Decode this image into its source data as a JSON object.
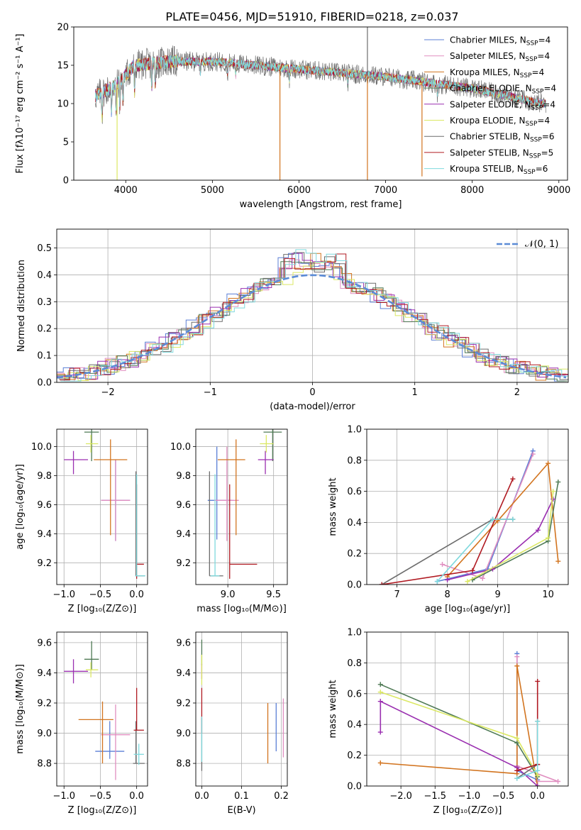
{
  "figure_title": "PLATE=0456, MJD=51910, FIBERID=0218, z=0.037",
  "colors": {
    "chabrier_miles": "#5b7fd6",
    "salpeter_miles": "#e08ec0",
    "kroupa_miles": "#d2741f",
    "chabrier_elodie": "#4f7a55",
    "salpeter_elodie": "#9a2fb0",
    "kroupa_elodie": "#dbe863",
    "chabrier_stelib": "#6d6d6d",
    "salpeter_stelib": "#b01a22",
    "kroupa_stelib": "#7fd9dd",
    "normal": "#5b8bd6"
  },
  "chart_data": [
    {
      "id": "spectrum",
      "type": "line",
      "xlabel": "wavelength [Angstrom, rest frame]",
      "ylabel": "Flux [fλ10⁻¹⁷ erg cm⁻² s⁻¹ A⁻¹]",
      "xlim": [
        3400,
        9100
      ],
      "ylim": [
        0,
        20
      ],
      "xticks": [
        "4000",
        "5000",
        "6000",
        "7000",
        "8000",
        "9000"
      ],
      "yticks": [
        "0",
        "5",
        "10",
        "15",
        "20"
      ],
      "wavelength_range": [
        3650,
        8850
      ],
      "continuum_anchor": {
        "x": [
          3650,
          3900,
          4100,
          4500,
          5000,
          6000,
          7000,
          8000,
          8800
        ],
        "y": [
          11.0,
          12.5,
          15.0,
          15.5,
          15.5,
          14.5,
          13.5,
          12.0,
          10.0
        ]
      },
      "legend": [
        {
          "main": "Chabrier MILES, N",
          "sub": "SSP",
          "tail": "=4",
          "color_key": "chabrier_miles"
        },
        {
          "main": "Salpeter MILES, N",
          "sub": "SSP",
          "tail": "=4",
          "color_key": "salpeter_miles"
        },
        {
          "main": "Kroupa MILES, N",
          "sub": "SSP",
          "tail": "=4",
          "color_key": "kroupa_miles"
        },
        {
          "main": "Chabrier ELODIE, N",
          "sub": "SSP",
          "tail": "=4",
          "color_key": "chabrier_elodie"
        },
        {
          "main": "Salpeter ELODIE, N",
          "sub": "SSP",
          "tail": "=4",
          "color_key": "salpeter_elodie"
        },
        {
          "main": "Kroupa ELODIE, N",
          "sub": "SSP",
          "tail": "=4",
          "color_key": "kroupa_elodie"
        },
        {
          "main": "Chabrier STELIB, N",
          "sub": "SSP",
          "tail": "=6",
          "color_key": "chabrier_stelib"
        },
        {
          "main": "Salpeter STELIB, N",
          "sub": "SSP",
          "tail": "=5",
          "color_key": "salpeter_stelib"
        },
        {
          "main": "Kroupa STELIB, N",
          "sub": "SSP",
          "tail": "=6",
          "color_key": "kroupa_stelib"
        }
      ],
      "dropouts": [
        {
          "x": 3900,
          "y_min": 0,
          "color_key": "kroupa_elodie"
        },
        {
          "x": 5780,
          "y_min": 0,
          "color_key": "kroupa_miles"
        },
        {
          "x": 6790,
          "y_min": 0,
          "color_key": "kroupa_miles"
        },
        {
          "x": 7420,
          "y_min": 0.5,
          "color_key": "kroupa_miles"
        }
      ],
      "spike": {
        "x": 6790,
        "y_max": 20,
        "color_key": "chabrier_stelib"
      }
    },
    {
      "id": "residuals",
      "type": "step",
      "xlabel": "(data-model)/error",
      "ylabel": "Normed distribution",
      "xlim": [
        -2.5,
        2.5
      ],
      "ylim": [
        0,
        0.57
      ],
      "xticks": [
        "−2",
        "−1",
        "0",
        "1",
        "2"
      ],
      "yticks": [
        "0.0",
        "0.1",
        "0.2",
        "0.3",
        "0.4",
        "0.5"
      ],
      "bin_width": 0.1,
      "legend": {
        "label": "𝒩(0, 1)",
        "color_key": "normal"
      },
      "peak_values": [
        0.54,
        0.47,
        0.45,
        0.44,
        0.42
      ]
    },
    {
      "id": "age_vs_Z",
      "type": "errorbar",
      "xlabel": "Z [log₁₀(Z/Z⊙)]",
      "ylabel": "age  [log₁₀(age/yr)]",
      "xlim": [
        -1.1,
        0.15
      ],
      "ylim": [
        9.05,
        10.12
      ],
      "xticks": [
        "−1.0",
        "−0.5",
        "0.0"
      ],
      "yticks": [
        "9.2",
        "9.4",
        "9.6",
        "9.8",
        "10.0"
      ],
      "points": [
        {
          "x": -0.29,
          "y": 9.63,
          "xerr": [
            0.2,
            0.2
          ],
          "yerr": [
            0.28,
            0.28
          ],
          "color_key": "chabrier_miles"
        },
        {
          "x": -0.29,
          "y": 9.63,
          "xerr": [
            0.2,
            0.2
          ],
          "yerr": [
            0.28,
            0.28
          ],
          "color_key": "salpeter_miles"
        },
        {
          "x": -0.36,
          "y": 9.91,
          "xerr": [
            0.23,
            0.23
          ],
          "yerr": [
            0.52,
            0.14
          ],
          "color_key": "kroupa_miles"
        },
        {
          "x": -0.62,
          "y": 10.1,
          "xerr": [
            0.1,
            0.1
          ],
          "yerr": [
            0.2,
            0.02
          ],
          "color_key": "chabrier_elodie"
        },
        {
          "x": -0.87,
          "y": 9.91,
          "xerr": [
            0.13,
            0.2
          ],
          "yerr": [
            0.1,
            0.06
          ],
          "color_key": "salpeter_elodie"
        },
        {
          "x": -0.63,
          "y": 10.02,
          "xerr": [
            0.07,
            0.1
          ],
          "yerr": [
            0.06,
            0.06
          ],
          "color_key": "kroupa_elodie"
        },
        {
          "x": -0.01,
          "y": 9.11,
          "xerr": [
            0.01,
            0.12
          ],
          "yerr": [
            0.0,
            0.72
          ],
          "color_key": "chabrier_stelib"
        },
        {
          "x": 0.0,
          "y": 9.19,
          "xerr": [
            0.0,
            0.1
          ],
          "yerr": [
            0.1,
            0.55
          ],
          "color_key": "salpeter_stelib"
        },
        {
          "x": 0.0,
          "y": 9.11,
          "xerr": [
            0.02,
            0.12
          ],
          "yerr": [
            0.0,
            0.7
          ],
          "color_key": "kroupa_stelib"
        }
      ]
    },
    {
      "id": "age_vs_mass",
      "type": "errorbar",
      "xlabel": "mass [log₁₀(M/M⊙)]",
      "ylabel": "",
      "xlim": [
        8.65,
        9.65
      ],
      "ylim": [
        9.05,
        10.12
      ],
      "xticks": [
        "9.0",
        "9.5"
      ],
      "yticks": [
        "9.2",
        "9.4",
        "9.6",
        "9.8",
        "10.0"
      ],
      "points": [
        {
          "x": 8.88,
          "y": 9.63,
          "xerr": [
            0.1,
            0.17
          ],
          "yerr": [
            0.27,
            0.37
          ],
          "color_key": "chabrier_miles"
        },
        {
          "x": 8.99,
          "y": 9.63,
          "xerr": [
            0.14,
            0.13
          ],
          "yerr": [
            0.28,
            0.37
          ],
          "color_key": "salpeter_miles"
        },
        {
          "x": 9.09,
          "y": 9.91,
          "xerr": [
            0.2,
            0.1
          ],
          "yerr": [
            0.52,
            0.14
          ],
          "color_key": "kroupa_miles"
        },
        {
          "x": 9.49,
          "y": 10.1,
          "xerr": [
            0.1,
            0.1
          ],
          "yerr": [
            0.2,
            0.02
          ],
          "color_key": "chabrier_elodie"
        },
        {
          "x": 9.41,
          "y": 9.91,
          "xerr": [
            0.08,
            0.09
          ],
          "yerr": [
            0.1,
            0.06
          ],
          "color_key": "salpeter_elodie"
        },
        {
          "x": 9.42,
          "y": 10.02,
          "xerr": [
            0.07,
            0.08
          ],
          "yerr": [
            0.06,
            0.06
          ],
          "color_key": "kroupa_elodie"
        },
        {
          "x": 8.8,
          "y": 9.11,
          "xerr": [
            0.0,
            0.15
          ],
          "yerr": [
            0.0,
            0.72
          ],
          "color_key": "chabrier_stelib"
        },
        {
          "x": 9.02,
          "y": 9.19,
          "xerr": [
            0.0,
            0.3
          ],
          "yerr": [
            0.1,
            0.55
          ],
          "color_key": "salpeter_stelib"
        },
        {
          "x": 8.86,
          "y": 9.11,
          "xerr": [
            0.05,
            0.05
          ],
          "yerr": [
            0.0,
            0.7
          ],
          "color_key": "kroupa_stelib"
        }
      ]
    },
    {
      "id": "weight_vs_age",
      "type": "line",
      "xlabel": "age  [log₁₀(age/yr)]",
      "ylabel": "mass weight",
      "xlim": [
        6.4,
        10.4
      ],
      "ylim": [
        0,
        1.0
      ],
      "xticks": [
        "7",
        "8",
        "9",
        "10"
      ],
      "yticks": [
        "0.0",
        "0.2",
        "0.4",
        "0.6",
        "0.8",
        "1.0"
      ],
      "series": [
        {
          "color_key": "chabrier_miles",
          "x": [
            7.8,
            8.8,
            9.7
          ],
          "y": [
            0.02,
            0.1,
            0.86
          ]
        },
        {
          "color_key": "salpeter_miles",
          "x": [
            7.9,
            8.7,
            9.7
          ],
          "y": [
            0.13,
            0.04,
            0.84
          ]
        },
        {
          "color_key": "kroupa_miles",
          "x": [
            8.0,
            9.0,
            10.0,
            10.2
          ],
          "y": [
            0.05,
            0.41,
            0.78,
            0.15
          ]
        },
        {
          "color_key": "chabrier_elodie",
          "x": [
            8.5,
            10.0,
            10.2
          ],
          "y": [
            0.03,
            0.28,
            0.66
          ]
        },
        {
          "color_key": "salpeter_elodie",
          "x": [
            8.0,
            8.9,
            9.8,
            10.1
          ],
          "y": [
            0.03,
            0.1,
            0.35,
            0.55
          ]
        },
        {
          "color_key": "kroupa_elodie",
          "x": [
            8.4,
            10.0,
            10.1
          ],
          "y": [
            0.02,
            0.3,
            0.6
          ]
        },
        {
          "color_key": "chabrier_stelib",
          "x": [
            6.7,
            8.9,
            9.3
          ],
          "y": [
            0.0,
            0.42,
            0.42
          ]
        },
        {
          "color_key": "salpeter_stelib",
          "x": [
            6.7,
            8.5,
            9.3
          ],
          "y": [
            0.0,
            0.09,
            0.68
          ]
        },
        {
          "color_key": "kroupa_stelib",
          "x": [
            7.8,
            8.9,
            9.3
          ],
          "y": [
            0.02,
            0.42,
            0.42
          ]
        }
      ]
    },
    {
      "id": "mass_vs_Z",
      "type": "errorbar",
      "xlabel": "Z [log₁₀(Z/Z⊙)]",
      "ylabel": "mass [log₁₀(M/M⊙)]",
      "xlim": [
        -1.1,
        0.15
      ],
      "ylim": [
        8.65,
        9.67
      ],
      "xticks": [
        "−1.0",
        "−0.5",
        "0.0"
      ],
      "yticks": [
        "8.8",
        "9.0",
        "9.2",
        "9.4",
        "9.6"
      ],
      "points": [
        {
          "x": -0.37,
          "y": 8.88,
          "xerr": [
            0.2,
            0.2
          ],
          "yerr": [
            0.05,
            0.2
          ],
          "color_key": "chabrier_miles"
        },
        {
          "x": -0.29,
          "y": 8.99,
          "xerr": [
            0.2,
            0.2
          ],
          "yerr": [
            0.3,
            0.2
          ],
          "color_key": "salpeter_miles"
        },
        {
          "x": -0.47,
          "y": 9.09,
          "xerr": [
            0.33,
            0.15
          ],
          "yerr": [
            0.29,
            0.12
          ],
          "color_key": "kroupa_miles"
        },
        {
          "x": -0.62,
          "y": 9.49,
          "xerr": [
            0.1,
            0.1
          ],
          "yerr": [
            0.07,
            0.12
          ],
          "color_key": "chabrier_elodie"
        },
        {
          "x": -0.87,
          "y": 9.41,
          "xerr": [
            0.13,
            0.2
          ],
          "yerr": [
            0.08,
            0.08
          ],
          "color_key": "salpeter_elodie"
        },
        {
          "x": -0.63,
          "y": 9.42,
          "xerr": [
            0.07,
            0.1
          ],
          "yerr": [
            0.05,
            0.05
          ],
          "color_key": "kroupa_elodie"
        },
        {
          "x": -0.01,
          "y": 8.8,
          "xerr": [
            0.04,
            0.12
          ],
          "yerr": [
            0.0,
            0.28
          ],
          "color_key": "chabrier_stelib"
        },
        {
          "x": 0.0,
          "y": 9.02,
          "xerr": [
            0.04,
            0.1
          ],
          "yerr": [
            0.0,
            0.28
          ],
          "color_key": "salpeter_stelib"
        },
        {
          "x": 0.03,
          "y": 8.86,
          "xerr": [
            0.07,
            0.07
          ],
          "yerr": [
            0.07,
            0.07
          ],
          "color_key": "kroupa_stelib"
        }
      ]
    },
    {
      "id": "mass_vs_EBV",
      "type": "errorbar",
      "xlabel": "E(B-V)",
      "ylabel": "",
      "xlim": [
        -0.015,
        0.215
      ],
      "ylim": [
        8.65,
        9.67
      ],
      "xticks": [
        "0.0",
        "0.1",
        "0.2"
      ],
      "yticks": [
        "8.8",
        "9.0",
        "9.2",
        "9.4",
        "9.6"
      ],
      "points": [
        {
          "x": 0.187,
          "y": 8.88,
          "xerr": [
            0,
            0
          ],
          "yerr": [
            0.0,
            0.32
          ],
          "color_key": "chabrier_miles"
        },
        {
          "x": 0.205,
          "y": 8.99,
          "xerr": [
            0,
            0
          ],
          "yerr": [
            0.15,
            0.24
          ],
          "color_key": "salpeter_miles"
        },
        {
          "x": 0.166,
          "y": 9.0,
          "xerr": [
            0,
            0
          ],
          "yerr": [
            0.2,
            0.2
          ],
          "color_key": "kroupa_miles"
        },
        {
          "x": 0.0,
          "y": 9.49,
          "xerr": [
            0,
            0
          ],
          "yerr": [
            0.04,
            0.13
          ],
          "color_key": "chabrier_elodie"
        },
        {
          "x": 0.0,
          "y": 9.41,
          "xerr": [
            0,
            0
          ],
          "yerr": [
            0.05,
            0.05
          ],
          "color_key": "salpeter_elodie"
        },
        {
          "x": 0.0,
          "y": 9.42,
          "xerr": [
            0,
            0
          ],
          "yerr": [
            0.1,
            0.1
          ],
          "color_key": "kroupa_elodie"
        },
        {
          "x": 0.0,
          "y": 8.8,
          "xerr": [
            0,
            0
          ],
          "yerr": [
            0.05,
            0.3
          ],
          "color_key": "chabrier_stelib"
        },
        {
          "x": 0.0,
          "y": 9.1,
          "xerr": [
            0,
            0
          ],
          "yerr": [
            0.1,
            0.2
          ],
          "color_key": "salpeter_stelib"
        },
        {
          "x": 0.0,
          "y": 8.86,
          "xerr": [
            0,
            0
          ],
          "yerr": [
            0.05,
            0.25
          ],
          "color_key": "kroupa_stelib"
        }
      ]
    },
    {
      "id": "weight_vs_Z",
      "type": "line",
      "xlabel": "Z [log₁₀(Z/Z⊙)]",
      "ylabel": "mass weight",
      "xlim": [
        -2.5,
        0.45
      ],
      "ylim": [
        0,
        1.0
      ],
      "xticks": [
        "−2.0",
        "−1.5",
        "−1.0",
        "−0.5",
        "0.0"
      ],
      "yticks": [
        "0.0",
        "0.2",
        "0.4",
        "0.6",
        "0.8",
        "1.0"
      ],
      "series": [
        {
          "color_key": "chabrier_miles",
          "x": [
            0.0,
            -0.3,
            -0.3
          ],
          "y": [
            0.04,
            0.1,
            0.86
          ]
        },
        {
          "color_key": "salpeter_miles",
          "x": [
            0.0,
            0.3,
            -0.3,
            -0.3
          ],
          "y": [
            0.03,
            0.03,
            0.13,
            0.84
          ]
        },
        {
          "color_key": "kroupa_miles",
          "x": [
            -2.3,
            -0.3,
            -0.3,
            0.0
          ],
          "y": [
            0.15,
            0.08,
            0.78,
            0.0
          ]
        },
        {
          "color_key": "chabrier_elodie",
          "x": [
            -2.3,
            -0.3,
            0.0
          ],
          "y": [
            0.66,
            0.28,
            0.06
          ]
        },
        {
          "color_key": "salpeter_elodie",
          "x": [
            -2.3,
            -2.3,
            -0.3,
            0.0
          ],
          "y": [
            0.35,
            0.55,
            0.12,
            0.0
          ]
        },
        {
          "color_key": "kroupa_elodie",
          "x": [
            -2.3,
            -0.3,
            0.0
          ],
          "y": [
            0.61,
            0.31,
            0.07
          ]
        },
        {
          "color_key": "chabrier_stelib",
          "x": [
            -0.3,
            0.0,
            0.0
          ],
          "y": [
            0.05,
            0.14,
            0.42
          ]
        },
        {
          "color_key": "salpeter_stelib",
          "x": [
            -0.3,
            0.0,
            0.0
          ],
          "y": [
            0.1,
            0.14,
            0.68
          ]
        },
        {
          "color_key": "kroupa_stelib",
          "x": [
            -0.3,
            0.0,
            0.0
          ],
          "y": [
            0.05,
            0.1,
            0.42
          ]
        }
      ]
    }
  ]
}
